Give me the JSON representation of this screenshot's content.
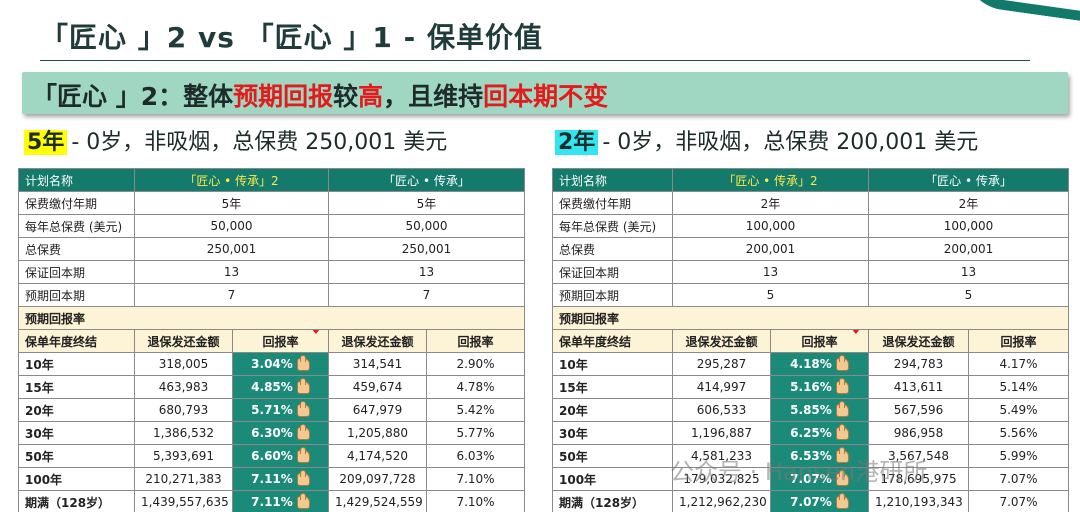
{
  "title": "「匠心 」2 vs 「匠心 」1 - 保单价值",
  "banner": {
    "prefix": "「匠心 」2：整体",
    "hl1": "预期回报",
    "mid1": "较",
    "hl2": "高",
    "mid2": "，且维持",
    "hl3": "回本期不变"
  },
  "left": {
    "tag": "5年",
    "desc": "- 0岁，非吸烟，总保费 250,001 美元",
    "header": [
      "计划名称",
      "「匠心 • 传承」2",
      "「匠心 • 传承」"
    ],
    "info_rows": [
      [
        "保费缴付年期",
        "5年",
        "5年"
      ],
      [
        "每年总保费 (美元)",
        "50,000",
        "50,000"
      ],
      [
        "总保费",
        "250,001",
        "250,001"
      ],
      [
        "保证回本期",
        "13",
        "13"
      ],
      [
        "预期回本期",
        "7",
        "7"
      ]
    ],
    "section": "预期回报率",
    "sub_header": [
      "保单年度终结",
      "退保发还金额",
      "回报率",
      "退保发还金额",
      "回报率"
    ],
    "rows": [
      [
        "10年",
        "318,005",
        "3.04%",
        "314,541",
        "2.90%"
      ],
      [
        "15年",
        "463,983",
        "4.85%",
        "459,674",
        "4.78%"
      ],
      [
        "20年",
        "680,793",
        "5.71%",
        "647,979",
        "5.42%"
      ],
      [
        "30年",
        "1,386,532",
        "6.30%",
        "1,205,880",
        "5.77%"
      ],
      [
        "50年",
        "5,393,691",
        "6.60%",
        "4,174,520",
        "6.03%"
      ],
      [
        "100年",
        "210,271,383",
        "7.11%",
        "209,097,728",
        "7.10%"
      ],
      [
        "期满（128岁）",
        "1,439,557,635",
        "7.11%",
        "1,429,524,559",
        "7.10%"
      ]
    ]
  },
  "right": {
    "tag": "2年",
    "desc": "- 0岁，非吸烟，总保费 200,001 美元",
    "header": [
      "计划名称",
      "「匠心 • 传承」2",
      "「匠心 • 传承」"
    ],
    "info_rows": [
      [
        "保费缴付年期",
        "2年",
        "2年"
      ],
      [
        "每年总保费 (美元)",
        "100,000",
        "100,000"
      ],
      [
        "总保费",
        "200,001",
        "200,001"
      ],
      [
        "保证回本期",
        "13",
        "13"
      ],
      [
        "预期回本期",
        "5",
        "5"
      ]
    ],
    "section": "预期回报率",
    "sub_header": [
      "保单年度终结",
      "退保发还金额",
      "回报率",
      "退保发还金额",
      "回报率"
    ],
    "rows": [
      [
        "10年",
        "295,287",
        "4.18%",
        "294,783",
        "4.17%"
      ],
      [
        "15年",
        "414,997",
        "5.16%",
        "413,611",
        "5.14%"
      ],
      [
        "20年",
        "606,533",
        "5.85%",
        "567,596",
        "5.49%"
      ],
      [
        "30年",
        "1,196,887",
        "6.25%",
        "986,958",
        "5.56%"
      ],
      [
        "50年",
        "4,581,233",
        "6.53%",
        "3,567,548",
        "5.99%"
      ],
      [
        "100年",
        "179,032,825",
        "7.07%",
        "178,695,975",
        "7.07%"
      ],
      [
        "期满（128岁）",
        "1,212,962,230",
        "7.07%",
        "1,210,193,343",
        "7.07%"
      ]
    ]
  },
  "watermark": "公众号 · Hansen港研所",
  "colors": {
    "header_bg": "#137a6c",
    "highlight_rate": "#1c8a78",
    "banner_bg": "#9fd7c2",
    "accent_red": "#e21c1c"
  }
}
